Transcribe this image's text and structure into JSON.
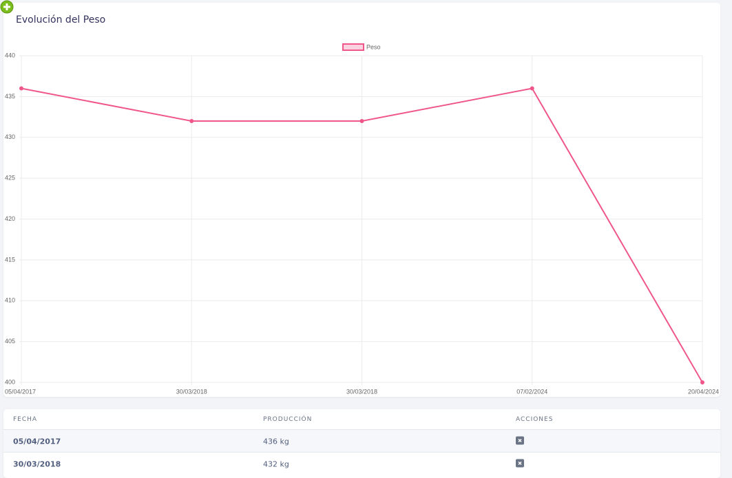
{
  "card": {
    "title": "Evolución del Peso"
  },
  "chart_data": {
    "type": "line",
    "categories": [
      "05/04/2017",
      "30/03/2018",
      "30/03/2018",
      "07/02/2024",
      "20/04/2024"
    ],
    "series": [
      {
        "name": "Peso",
        "color": "#f0568a",
        "values": [
          436,
          432,
          432,
          436,
          400
        ]
      }
    ],
    "ylim": [
      400,
      440
    ],
    "yticks": [
      400,
      405,
      410,
      415,
      420,
      425,
      430,
      435,
      440
    ],
    "grid": true,
    "legend": "top"
  },
  "table": {
    "headers": [
      "FECHA",
      "PRODUCCIÓN",
      "ACCIONES"
    ],
    "rows": [
      [
        "05/04/2017",
        "436 kg"
      ],
      [
        "30/03/2018",
        "432 kg"
      ]
    ]
  }
}
